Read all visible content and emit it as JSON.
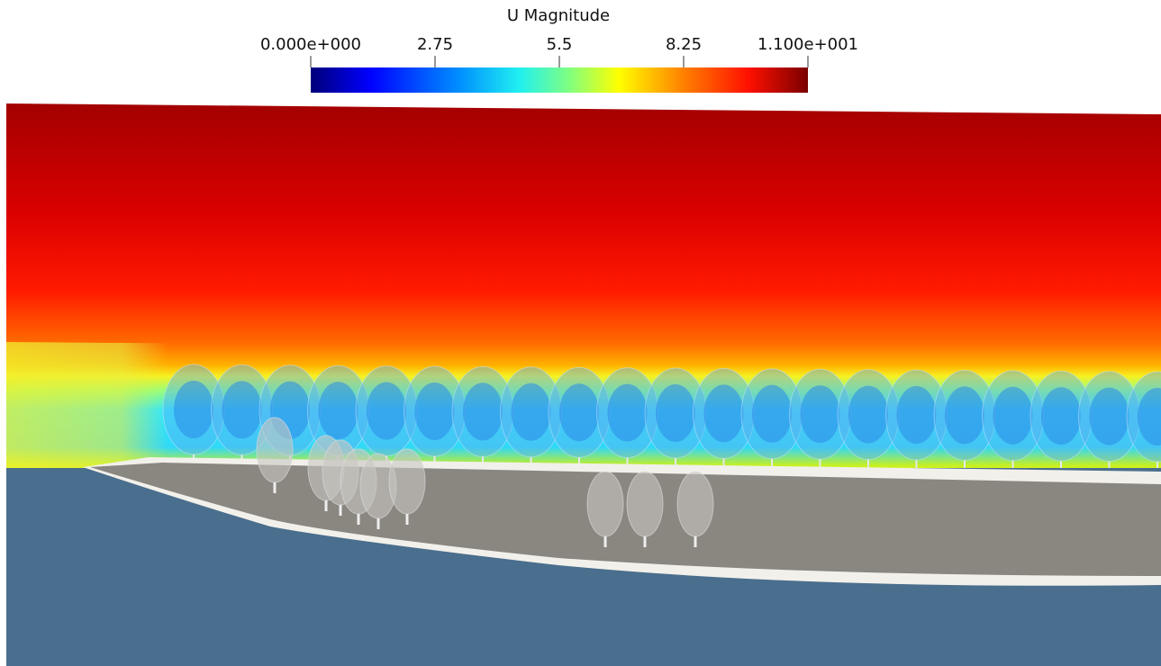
{
  "colorbar": {
    "title": "U Magnitude",
    "range": [
      0,
      11
    ],
    "ticks": [
      {
        "value": 0,
        "label": "0.000e+000"
      },
      2.75,
      5.5,
      8.25,
      {
        "value": 11,
        "label": "1.100e+001"
      }
    ]
  }
}
